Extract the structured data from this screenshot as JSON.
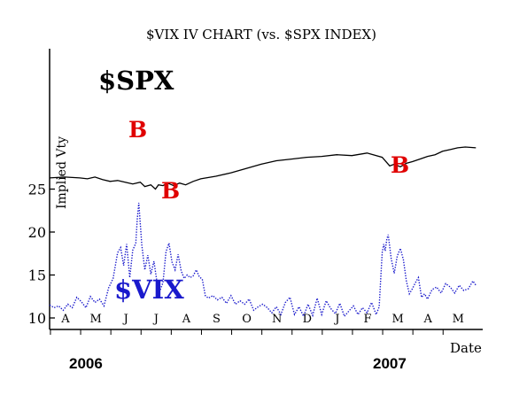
{
  "chart_data": {
    "type": "line",
    "title": "$VIX IV CHART (vs. $SPX INDEX)",
    "xlabel": "Date",
    "ylabel": "Implied Vty",
    "ylim": [
      9.5,
      30
    ],
    "y_ticks": [
      "10",
      "15",
      "20",
      "25"
    ],
    "month_ticks": [
      "A",
      "M",
      "J",
      "J",
      "A",
      "S",
      "O",
      "N",
      "D",
      "J",
      "F",
      "M",
      "A",
      "M"
    ],
    "years": [
      "2006",
      "2007"
    ],
    "grid": false,
    "series": [
      {
        "name": "$SPX",
        "color": "#000000",
        "style": "solid",
        "label_color": "#000000",
        "x": [
          0,
          10,
          20,
          25,
          30,
          35,
          40,
          45,
          50,
          55,
          60,
          63,
          67,
          70,
          72,
          75,
          78,
          82,
          86,
          90,
          95,
          100,
          110,
          120,
          130,
          140,
          150,
          160,
          170,
          180,
          190,
          200,
          210,
          220,
          225,
          228,
          232,
          236,
          240,
          245,
          250,
          255,
          260,
          265,
          270,
          275,
          282
        ],
        "values": [
          26.3,
          26.4,
          26.3,
          26.2,
          26.4,
          26.1,
          25.9,
          26.0,
          25.8,
          25.6,
          25.8,
          25.3,
          25.5,
          25.0,
          25.5,
          25.4,
          25.7,
          25.4,
          25.7,
          25.5,
          25.9,
          26.2,
          26.5,
          26.9,
          27.4,
          27.9,
          28.3,
          28.5,
          28.7,
          28.8,
          29.0,
          28.9,
          29.2,
          28.7,
          27.7,
          27.9,
          27.6,
          28.0,
          28.2,
          28.5,
          28.8,
          29.0,
          29.4,
          29.6,
          29.8,
          29.9,
          29.8
        ]
      },
      {
        "name": "$VIX",
        "color": "#1a1acc",
        "style": "dotted",
        "label_color": "#1a1acc",
        "x": [
          0,
          3,
          6,
          9,
          12,
          15,
          18,
          21,
          24,
          27,
          30,
          33,
          36,
          39,
          42,
          45,
          47,
          49,
          51,
          53,
          55,
          57,
          58,
          59,
          61,
          63,
          65,
          67,
          69,
          71,
          73,
          75,
          77,
          79,
          81,
          83,
          85,
          87,
          89,
          91,
          93,
          95,
          97,
          99,
          101,
          103,
          105,
          108,
          111,
          114,
          117,
          120,
          123,
          126,
          129,
          132,
          135,
          138,
          141,
          144,
          147,
          150,
          153,
          156,
          159,
          162,
          165,
          168,
          171,
          174,
          177,
          180,
          183,
          186,
          189,
          192,
          195,
          198,
          201,
          204,
          207,
          210,
          213,
          216,
          218,
          220,
          221,
          222,
          223,
          224,
          226,
          228,
          230,
          232,
          234,
          236,
          238,
          240,
          242,
          244,
          246,
          248,
          250,
          253,
          256,
          259,
          262,
          265,
          268,
          271,
          274,
          277,
          280,
          282
        ],
        "values": [
          11.5,
          11.2,
          11.4,
          10.9,
          11.6,
          11.2,
          12.4,
          11.9,
          11.2,
          12.5,
          11.8,
          12.2,
          11.4,
          13.5,
          14.6,
          17.6,
          18.2,
          16.1,
          18.6,
          14.7,
          17.9,
          18.7,
          21.5,
          23.4,
          18.5,
          15.6,
          17.3,
          15.1,
          16.6,
          14.2,
          13.2,
          14.1,
          17.7,
          18.7,
          16.5,
          15.6,
          17.4,
          15.5,
          14.6,
          15.0,
          14.7,
          14.9,
          15.6,
          14.8,
          14.5,
          12.6,
          12.3,
          12.6,
          12.1,
          12.4,
          11.7,
          12.6,
          11.6,
          12.0,
          11.6,
          12.2,
          10.9,
          11.3,
          11.6,
          11.2,
          10.6,
          11.3,
          10.4,
          11.8,
          12.4,
          10.4,
          11.3,
          10.2,
          11.6,
          10.3,
          12.3,
          10.4,
          12.0,
          11.1,
          10.5,
          11.7,
          10.2,
          10.8,
          11.4,
          10.4,
          11.2,
          10.6,
          11.8,
          10.4,
          11.3,
          17.6,
          18.6,
          17.8,
          19.1,
          19.7,
          16.9,
          15.2,
          17.2,
          18.1,
          16.8,
          14.3,
          12.8,
          13.4,
          14.1,
          14.7,
          12.4,
          12.8,
          12.2,
          13.3,
          13.6,
          12.9,
          14.0,
          13.6,
          12.9,
          13.8,
          13.2,
          13.4,
          14.3,
          13.8
        ]
      }
    ],
    "annotations": [
      "B",
      "B",
      "B"
    ]
  }
}
